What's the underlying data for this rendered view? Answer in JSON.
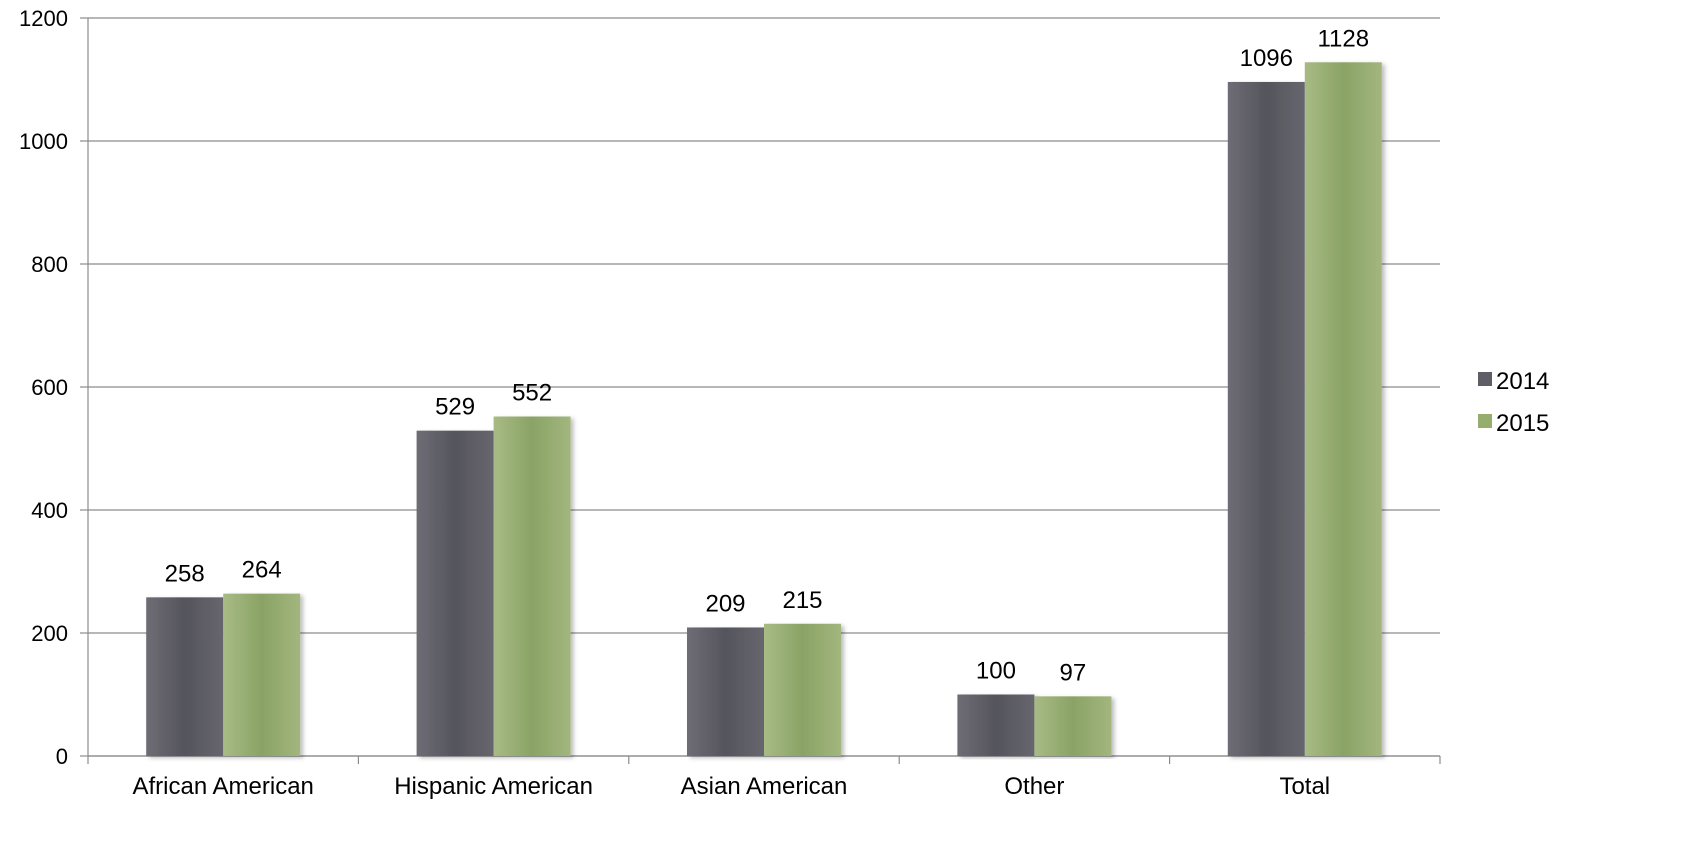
{
  "chart_data": {
    "type": "bar",
    "categories": [
      "African American",
      "Hispanic American",
      "Asian American",
      "Other",
      "Total"
    ],
    "series": [
      {
        "name": "2014",
        "values": [
          258,
          529,
          209,
          100,
          1096
        ],
        "color": "#5f5e66"
      },
      {
        "name": "2015",
        "values": [
          264,
          552,
          215,
          97,
          1128
        ],
        "color": "#97ad6e"
      }
    ],
    "ylim": [
      0,
      1200
    ],
    "yticks": [
      0,
      200,
      400,
      600,
      800,
      1000,
      1200
    ],
    "grid": true,
    "legend_position": "right",
    "title": "",
    "xlabel": "",
    "ylabel": ""
  }
}
